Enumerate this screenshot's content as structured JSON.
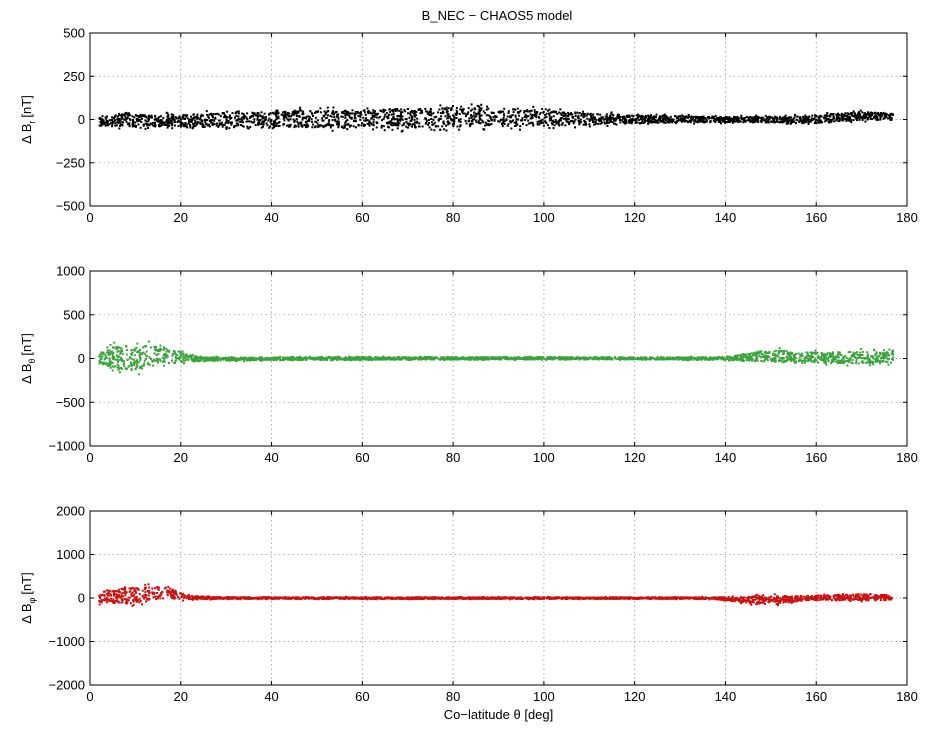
{
  "figure": {
    "title": "B_NEC − CHAOS5 model"
  },
  "chart_data": [
    {
      "type": "scatter",
      "title": "B_NEC − CHAOS5 model",
      "xlabel": "",
      "ylabel_main": "Δ B",
      "ylabel_sub": "r",
      "ylabel_unit": "[nT]",
      "xlim": [
        0,
        180
      ],
      "ylim": [
        -500,
        500
      ],
      "xticks": [
        0,
        20,
        40,
        60,
        80,
        100,
        120,
        140,
        160,
        180
      ],
      "yticks": [
        -500,
        -250,
        0,
        250,
        500
      ],
      "grid": true,
      "color": "#000000",
      "series": [
        {
          "x": [
            2,
            5,
            8,
            11,
            14,
            18,
            22,
            26,
            30,
            35,
            40,
            45,
            50,
            55,
            60,
            65,
            70,
            75,
            80,
            85,
            90,
            95,
            100,
            105,
            110,
            115,
            120,
            125,
            130,
            135,
            140,
            145,
            150,
            155,
            160,
            165,
            170,
            175,
            177
          ],
          "upper": [
            30,
            40,
            55,
            45,
            40,
            40,
            45,
            50,
            55,
            60,
            65,
            68,
            70,
            72,
            78,
            82,
            85,
            88,
            95,
            92,
            85,
            80,
            70,
            60,
            50,
            42,
            35,
            30,
            28,
            25,
            22,
            22,
            25,
            28,
            35,
            45,
            55,
            45,
            40
          ],
          "lower": [
            -50,
            -55,
            -55,
            -55,
            -55,
            -55,
            -60,
            -60,
            -65,
            -65,
            -65,
            -65,
            -68,
            -65,
            -68,
            -70,
            -70,
            -70,
            -65,
            -65,
            -60,
            -60,
            -55,
            -50,
            -45,
            -40,
            -35,
            -30,
            -25,
            -25,
            -22,
            -20,
            -25,
            -30,
            -30,
            -20,
            -15,
            -10,
            -10
          ]
        }
      ]
    },
    {
      "type": "scatter",
      "xlabel": "",
      "ylabel_main": "Δ B",
      "ylabel_sub": "θ",
      "ylabel_unit": "[nT]",
      "xlim": [
        0,
        180
      ],
      "ylim": [
        -1000,
        1000
      ],
      "xticks": [
        0,
        20,
        40,
        60,
        80,
        100,
        120,
        140,
        160,
        180
      ],
      "yticks": [
        -1000,
        -500,
        0,
        500,
        1000
      ],
      "grid": true,
      "color": "#3aa33a",
      "series": [
        {
          "x": [
            2,
            5,
            8,
            11,
            14,
            17,
            20,
            23,
            26,
            30,
            35,
            40,
            50,
            60,
            70,
            80,
            90,
            100,
            110,
            120,
            130,
            140,
            144,
            148,
            152,
            156,
            160,
            165,
            170,
            175,
            177
          ],
          "upper": [
            90,
            180,
            220,
            200,
            190,
            150,
            110,
            40,
            25,
            20,
            20,
            20,
            22,
            22,
            22,
            22,
            22,
            22,
            20,
            20,
            20,
            25,
            60,
            110,
            120,
            100,
            95,
            100,
            110,
            100,
            120
          ],
          "lower": [
            -100,
            -150,
            -200,
            -180,
            -120,
            -90,
            -70,
            -50,
            -40,
            -35,
            -30,
            -28,
            -25,
            -22,
            -20,
            -18,
            -18,
            -18,
            -18,
            -18,
            -20,
            -25,
            -40,
            -60,
            -70,
            -80,
            -80,
            -80,
            -85,
            -80,
            -80
          ]
        }
      ]
    },
    {
      "type": "scatter",
      "xlabel": "Co−latitude θ [deg]",
      "ylabel_main": "Δ B",
      "ylabel_sub": "φ",
      "ylabel_unit": "[nT]",
      "xlim": [
        0,
        180
      ],
      "ylim": [
        -2000,
        2000
      ],
      "xticks": [
        0,
        20,
        40,
        60,
        80,
        100,
        120,
        140,
        160,
        180
      ],
      "yticks": [
        -2000,
        -1000,
        0,
        1000,
        2000
      ],
      "grid": true,
      "color": "#cc1111",
      "series": [
        {
          "x": [
            2,
            5,
            8,
            11,
            14,
            17,
            20,
            23,
            26,
            30,
            40,
            50,
            60,
            70,
            80,
            90,
            100,
            110,
            120,
            130,
            138,
            142,
            146,
            150,
            154,
            158,
            162,
            166,
            170,
            175,
            177
          ],
          "upper": [
            200,
            250,
            300,
            320,
            330,
            300,
            150,
            60,
            40,
            30,
            25,
            25,
            25,
            25,
            25,
            25,
            25,
            25,
            25,
            25,
            30,
            40,
            80,
            100,
            60,
            80,
            90,
            100,
            120,
            100,
            80
          ],
          "lower": [
            -150,
            -180,
            -200,
            -180,
            -120,
            -80,
            -60,
            -50,
            -40,
            -30,
            -30,
            -30,
            -30,
            -30,
            -30,
            -30,
            -30,
            -30,
            -30,
            -30,
            -40,
            -100,
            -180,
            -200,
            -120,
            -80,
            -70,
            -70,
            -80,
            -80,
            -70
          ]
        }
      ]
    }
  ]
}
